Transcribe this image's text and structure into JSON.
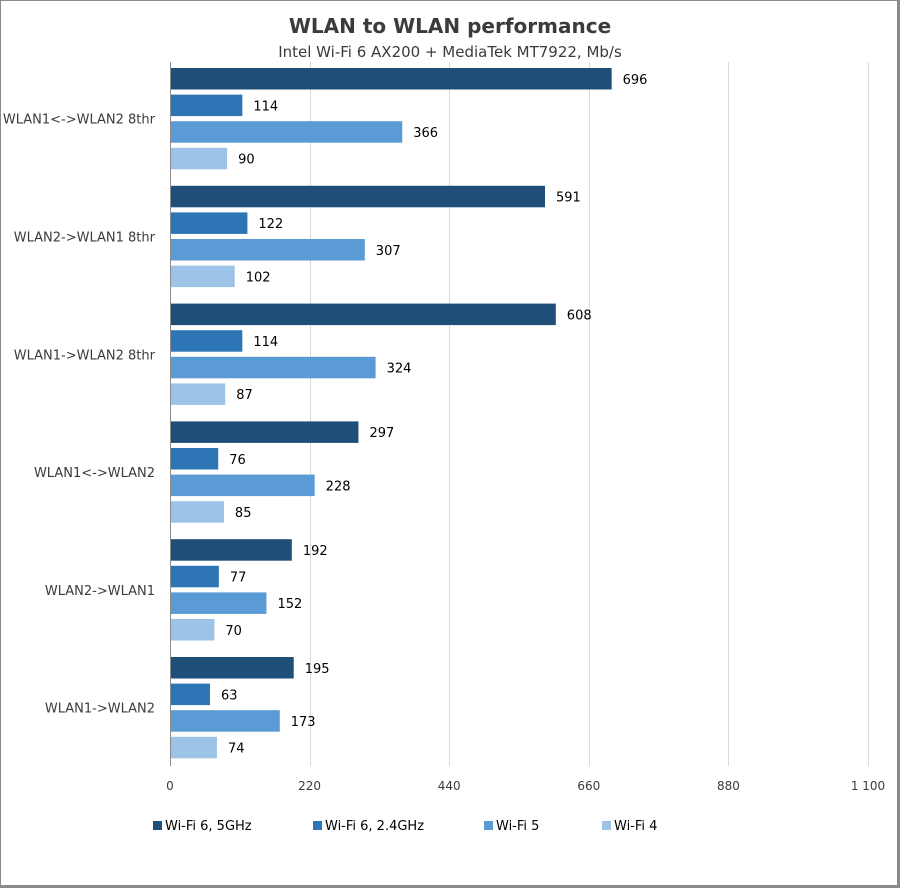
{
  "chart_data": {
    "type": "bar",
    "orientation": "horizontal",
    "title": "WLAN to WLAN performance",
    "subtitle": "Intel Wi-Fi 6 AX200 + MediaTek MT7922, Mb/s",
    "xlabel": "",
    "ylabel": "",
    "categories": [
      "WLAN1<->WLAN2 8thr",
      "WLAN2->WLAN1 8thr",
      "WLAN1->WLAN2 8thr",
      "WLAN1<->WLAN2",
      "WLAN2->WLAN1",
      "WLAN1->WLAN2"
    ],
    "series": [
      {
        "name": "Wi-Fi 6, 5GHz",
        "color": "#1f4e79",
        "values": [
          696,
          591,
          608,
          297,
          192,
          195
        ]
      },
      {
        "name": "Wi-Fi 6, 2.4GHz",
        "color": "#2e75b6",
        "values": [
          114,
          122,
          114,
          76,
          77,
          63
        ]
      },
      {
        "name": "Wi-Fi 5",
        "color": "#5b9bd5",
        "values": [
          366,
          307,
          324,
          228,
          152,
          173
        ]
      },
      {
        "name": "Wi-Fi 4",
        "color": "#9dc3e6",
        "values": [
          90,
          102,
          87,
          85,
          70,
          74
        ]
      }
    ],
    "xlim": [
      0,
      1100
    ],
    "xticks": [
      0,
      220,
      440,
      660,
      880,
      1100
    ],
    "xtick_labels": [
      "0",
      "220",
      "440",
      "660",
      "880",
      "1 100"
    ],
    "grid": true,
    "legend_position": "bottom",
    "data_labels": true
  }
}
